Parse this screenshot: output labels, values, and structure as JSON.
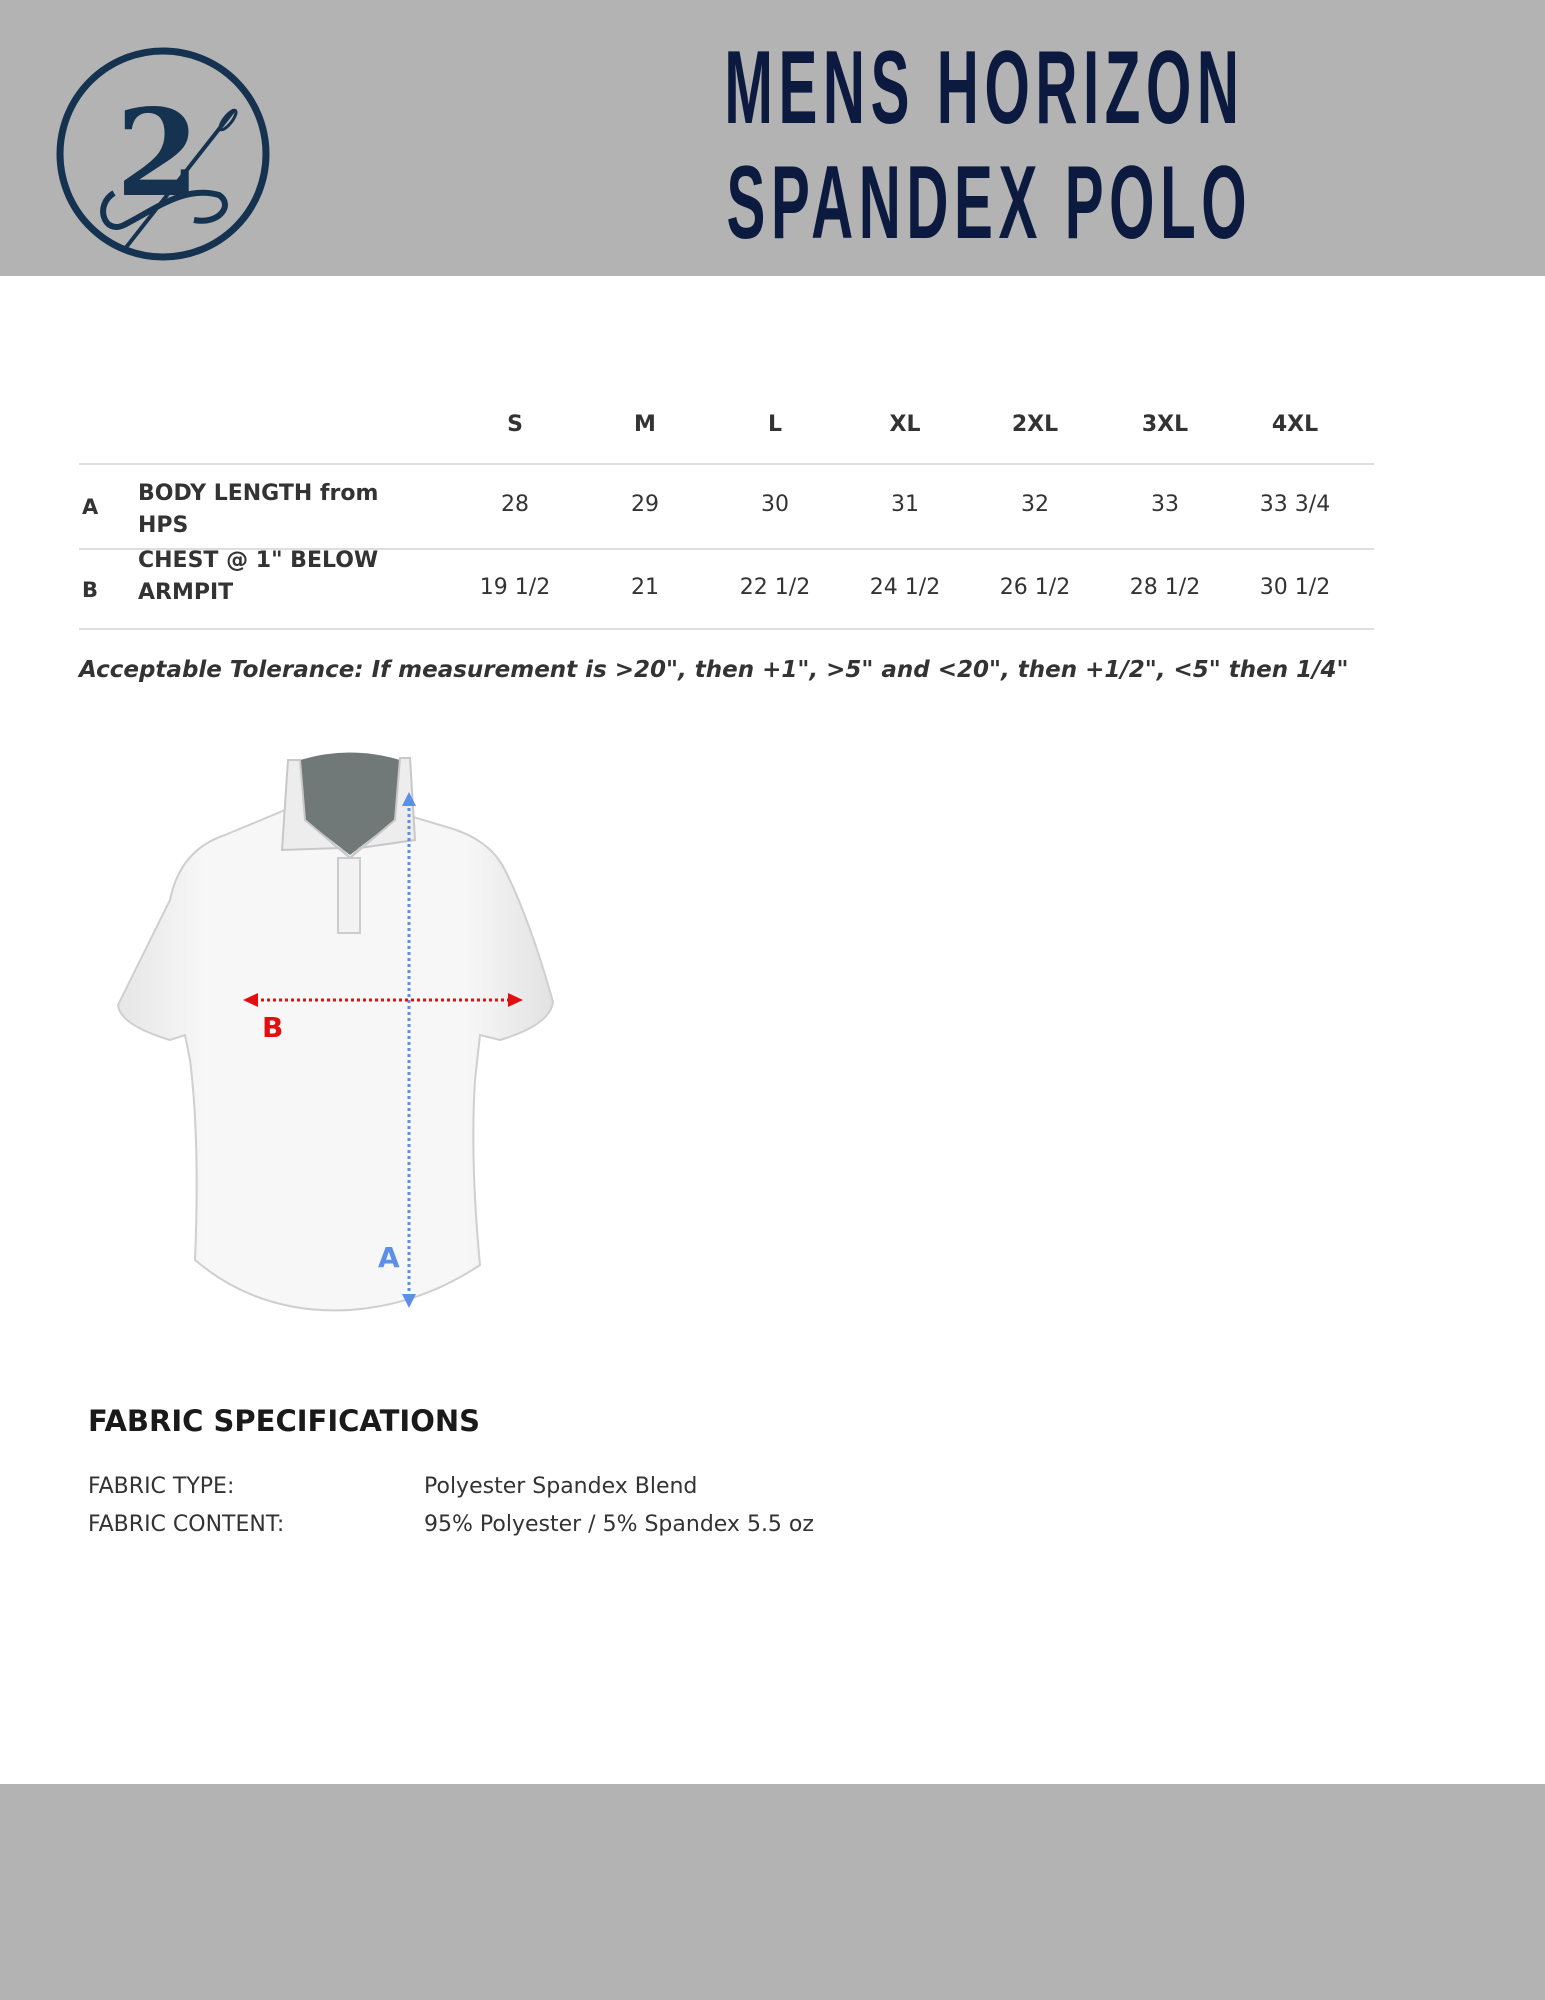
{
  "header": {
    "title_line1": "MENS HORIZON",
    "title_line2": "SPANDEX POLO",
    "logo_text": "2",
    "brand_color": "#0b1a3e",
    "background_color": "#b2b3b2"
  },
  "size_chart": {
    "sizes": [
      "S",
      "M",
      "L",
      "XL",
      "2XL",
      "3XL",
      "4XL"
    ],
    "rows": [
      {
        "letter": "A",
        "label_line1": "BODY LENGTH from",
        "label_line2": "HPS",
        "values": [
          "28",
          "29",
          "30",
          "31",
          "32",
          "33",
          "33 3/4"
        ]
      },
      {
        "letter": "B",
        "label_line1": "CHEST @ 1\" BELOW",
        "label_line2": "ARMPIT",
        "values": [
          "19 1/2",
          "21",
          "22 1/2",
          "24 1/2",
          "26 1/2",
          "28 1/2",
          "30 1/2"
        ]
      }
    ],
    "tolerance": "Acceptable Tolerance: If measurement is >20\", then +1\", >5\" and <20\", then +1/2\", <5\" then 1/4\""
  },
  "diagram": {
    "label_a": "A",
    "label_b": "B",
    "color_a": "#5b8fe8",
    "color_b": "#e01010"
  },
  "fabric": {
    "heading": "FABRIC SPECIFICATIONS",
    "items": [
      {
        "key": "FABRIC TYPE:",
        "value": "Polyester Spandex Blend"
      },
      {
        "key": "FABRIC CONTENT:",
        "value": "95% Polyester / 5% Spandex 5.5 oz"
      }
    ]
  }
}
